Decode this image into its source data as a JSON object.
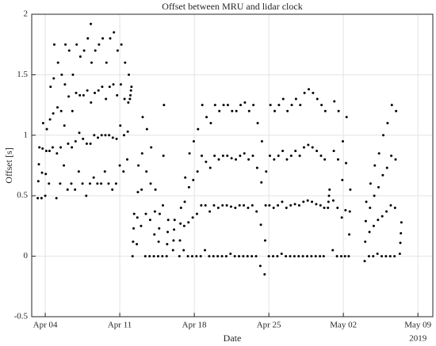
{
  "chart_data": {
    "type": "scatter",
    "title": "Offset between MRU and lidar clock",
    "x_label": "Date",
    "y_label": "Offset [s]",
    "x_axis_year": "2019",
    "color": "#000000",
    "grid": true,
    "xlim": [
      -1.27,
      36.4
    ],
    "ylim": [
      -0.5,
      2
    ],
    "xticks": [
      {
        "value": 0,
        "label": "Apr 04"
      },
      {
        "value": 7,
        "label": "Apr 11"
      },
      {
        "value": 14,
        "label": "Apr 18"
      },
      {
        "value": 21,
        "label": "Apr 25"
      },
      {
        "value": 28,
        "label": "May 02"
      },
      {
        "value": 35,
        "label": "May 09"
      }
    ],
    "yticks": [
      -0.5,
      0,
      0.5,
      1,
      1.5,
      2
    ],
    "x": [
      -0.7,
      -0.65,
      -0.6,
      -0.55,
      -0.35,
      -0.3,
      -0.25,
      -0.2,
      0,
      0.05,
      0.1,
      0.15,
      0.35,
      0.4,
      0.45,
      0.5,
      0.7,
      0.75,
      0.8,
      0.85,
      1.05,
      1.1,
      1.15,
      1.2,
      1.4,
      1.45,
      1.5,
      1.55,
      1.75,
      1.8,
      1.85,
      1.9,
      2.1,
      2.15,
      2.2,
      2.25,
      2.45,
      2.5,
      2.55,
      2.6,
      2.8,
      2.85,
      2.9,
      2.95,
      3.15,
      3.2,
      3.25,
      3.3,
      3.5,
      3.55,
      3.6,
      3.65,
      3.85,
      3.9,
      3.95,
      4.0,
      4.2,
      4.25,
      4.3,
      4.35,
      4.55,
      4.6,
      4.65,
      4.7,
      4.9,
      4.95,
      5.0,
      5.05,
      5.25,
      5.3,
      5.35,
      5.4,
      5.6,
      5.65,
      5.7,
      5.75,
      5.95,
      6.0,
      6.05,
      6.1,
      6.3,
      6.35,
      6.4,
      6.45,
      6.65,
      6.7,
      6.75,
      6.8,
      7.0,
      7.05,
      7.1,
      7.15,
      7.35,
      7.4,
      7.45,
      7.5,
      7.7,
      7.75,
      7.8,
      7.85,
      7.95,
      8.0,
      8.05,
      8.1,
      4.28,
      8.2,
      8.25,
      8.3,
      8.35,
      8.6,
      8.65,
      8.7,
      8.75,
      9.0,
      9.05,
      9.1,
      9.15,
      9.4,
      9.45,
      9.5,
      9.55,
      9.8,
      9.85,
      9.9,
      9.95,
      10.2,
      10.25,
      10.3,
      10.35,
      10.6,
      10.65,
      10.7,
      10.75,
      11.0,
      11.05,
      11.1,
      11.15,
      11.4,
      11.45,
      11.5,
      11.55,
      12.0,
      12.05,
      12.1,
      12.15,
      12.6,
      12.65,
      12.7,
      12.75,
      13.0,
      13.05,
      13.1,
      13.15,
      13.4,
      13.45,
      13.5,
      13.55,
      13.8,
      13.85,
      13.9,
      13.95,
      14.2,
      14.25,
      14.3,
      14.35,
      14.6,
      14.65,
      14.7,
      14.75,
      15.0,
      15.05,
      15.1,
      15.15,
      15.4,
      15.45,
      15.5,
      15.55,
      15.8,
      15.85,
      15.9,
      15.95,
      16.2,
      16.25,
      16.3,
      16.35,
      16.6,
      16.65,
      16.7,
      16.75,
      17.0,
      17.05,
      17.1,
      17.15,
      17.4,
      17.45,
      17.5,
      17.55,
      17.8,
      17.85,
      17.9,
      17.95,
      18.2,
      18.25,
      18.3,
      18.35,
      18.6,
      18.65,
      18.7,
      18.75,
      19.0,
      19.05,
      19.1,
      19.15,
      19.4,
      19.45,
      19.5,
      19.55,
      19.8,
      19.85,
      19.9,
      19.95,
      20.2,
      20.25,
      20.3,
      20.35,
      20.6,
      20.65,
      20.7,
      20.75,
      21.0,
      21.05,
      21.1,
      21.15,
      21.4,
      21.45,
      21.5,
      21.55,
      21.8,
      21.85,
      21.9,
      21.95,
      22.2,
      22.25,
      22.3,
      22.35,
      22.6,
      22.65,
      22.7,
      22.75,
      23.0,
      23.05,
      23.1,
      23.15,
      23.4,
      23.45,
      23.5,
      23.55,
      23.8,
      23.85,
      23.9,
      23.95,
      24.2,
      24.25,
      24.3,
      24.35,
      24.6,
      24.65,
      24.7,
      24.75,
      25.0,
      25.05,
      25.1,
      25.15,
      25.4,
      25.45,
      25.5,
      25.55,
      25.8,
      25.85,
      25.9,
      25.95,
      26.15,
      26.2,
      26.25,
      26.3,
      26.55,
      26.6,
      26.65,
      26.7,
      27.0,
      27.05,
      27.1,
      27.15,
      27.4,
      27.45,
      27.5,
      27.55,
      27.8,
      27.85,
      27.9,
      27.95,
      28.15,
      28.2,
      28.25,
      28.3,
      28.5,
      28.55,
      28.6,
      28.65,
      30.0,
      30.05,
      30.1,
      30.15,
      30.4,
      30.45,
      30.5,
      30.55,
      30.8,
      30.85,
      30.9,
      30.95,
      31.2,
      31.25,
      31.3,
      31.35,
      31.6,
      31.65,
      31.7,
      31.75,
      32.0,
      32.05,
      32.1,
      32.15,
      32.4,
      32.45,
      32.5,
      32.55,
      32.8,
      32.85,
      32.9,
      32.95,
      33.3,
      33.35,
      33.4,
      33.45
    ],
    "y": [
      0.48,
      0.62,
      0.76,
      0.9,
      0.48,
      0.69,
      0.89,
      1.1,
      0.5,
      0.68,
      0.87,
      1.05,
      0.6,
      0.87,
      1.13,
      1.4,
      0.9,
      1.18,
      1.47,
      1.75,
      0.48,
      0.85,
      1.23,
      1.6,
      0.6,
      0.9,
      1.2,
      1.5,
      0.75,
      1.08,
      1.42,
      1.75,
      0.55,
      0.93,
      1.32,
      1.7,
      0.6,
      0.9,
      1.2,
      1.5,
      0.55,
      0.95,
      1.35,
      1.75,
      0.7,
      1.02,
      1.33,
      1.65,
      0.6,
      0.97,
      1.33,
      1.7,
      0.5,
      0.93,
      1.37,
      1.8,
      0.6,
      0.93,
      1.27,
      1.6,
      0.65,
      1.0,
      1.35,
      1.7,
      0.6,
      0.98,
      1.37,
      1.75,
      0.6,
      1.0,
      1.4,
      1.8,
      0.7,
      1.0,
      1.3,
      1.6,
      0.6,
      1.0,
      1.4,
      1.8,
      0.55,
      0.98,
      1.42,
      1.85,
      0.6,
      0.97,
      1.33,
      1.7,
      0.75,
      1.08,
      1.42,
      1.75,
      0.7,
      1.0,
      1.3,
      1.6,
      0.8,
      1.03,
      1.27,
      1.5,
      1.3,
      1.33,
      1.37,
      1.4,
      1.92,
      0,
      0.12,
      0.23,
      0.35,
      0.1,
      0.32,
      0.53,
      0.75,
      0.25,
      0.55,
      0.85,
      1.15,
      0,
      0.35,
      0.7,
      1.05,
      0,
      0.3,
      0.6,
      0.9,
      0,
      0.18,
      0.37,
      0.55,
      0,
      0.12,
      0.23,
      0.35,
      0,
      0.42,
      0.83,
      1.25,
      0,
      0.1,
      0.2,
      0.3,
      0.05,
      0.13,
      0.22,
      0.3,
      0,
      0.13,
      0.27,
      0.4,
      0.05,
      0.25,
      0.45,
      0.65,
      0,
      0.28,
      0.57,
      0.85,
      0,
      0.32,
      0.63,
      0.95,
      0,
      0.35,
      0.7,
      1.05,
      0,
      0.42,
      0.83,
      1.25,
      0.05,
      0.42,
      0.78,
      1.15,
      0,
      0.37,
      0.73,
      1.1,
      0,
      0.42,
      0.83,
      1.25,
      0,
      0.4,
      0.8,
      1.2,
      0,
      0.42,
      0.83,
      1.25,
      0,
      0.42,
      0.83,
      1.25,
      0.02,
      0.41,
      0.81,
      1.2,
      0,
      0.4,
      0.8,
      1.2,
      0,
      0.42,
      0.83,
      1.25,
      0,
      0.42,
      0.85,
      1.27,
      0,
      0.4,
      0.8,
      1.2,
      0,
      0.42,
      0.83,
      1.25,
      0,
      0.37,
      0.73,
      1.1,
      -0.08,
      0.26,
      0.61,
      0.95,
      -0.15,
      0.13,
      0.42,
      0.7,
      0,
      0.42,
      0.83,
      1.25,
      0,
      0.4,
      0.8,
      1.2,
      0,
      0.42,
      0.83,
      1.25,
      0.02,
      0.45,
      0.87,
      1.3,
      0,
      0.4,
      0.8,
      1.2,
      0,
      0.42,
      0.83,
      1.25,
      0,
      0.43,
      0.87,
      1.3,
      0,
      0.42,
      0.83,
      1.25,
      0,
      0.45,
      0.9,
      1.35,
      0,
      0.46,
      0.92,
      1.38,
      0,
      0.45,
      0.9,
      1.35,
      0,
      0.43,
      0.87,
      1.3,
      0,
      0.42,
      0.83,
      1.25,
      0,
      0.4,
      0.8,
      1.2,
      0.4,
      0.45,
      0.5,
      0.55,
      0.05,
      0.46,
      0.87,
      1.28,
      0,
      0.4,
      0.8,
      1.2,
      0,
      0.32,
      0.63,
      0.95,
      0,
      0.38,
      0.77,
      1.15,
      0,
      0.18,
      0.37,
      0.55,
      -0.04,
      0.12,
      0.29,
      0.45,
      0,
      0.2,
      0.4,
      0.6,
      0,
      0.25,
      0.5,
      0.75,
      0.02,
      0.3,
      0.57,
      0.85,
      0,
      0.33,
      0.67,
      1.0,
      0,
      0.37,
      0.73,
      1.1,
      0,
      0.42,
      0.83,
      1.25,
      0,
      0.4,
      0.8,
      1.2,
      0.02,
      0.11,
      0.19,
      0.28
    ]
  }
}
